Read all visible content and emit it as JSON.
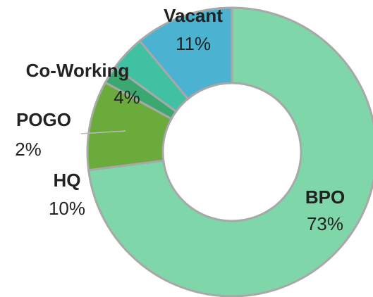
{
  "chart_data": {
    "type": "donut",
    "categories": [
      "BPO",
      "HQ",
      "POGO",
      "Co-Working",
      "Vacant"
    ],
    "values": [
      73,
      10,
      2,
      4,
      11
    ],
    "value_labels": [
      "73%",
      "10%",
      "2%",
      "4%",
      "11%"
    ],
    "colors": [
      "#7fd6a9",
      "#6aab3b",
      "#3aa870",
      "#40c2a2",
      "#4bb2d2"
    ]
  }
}
